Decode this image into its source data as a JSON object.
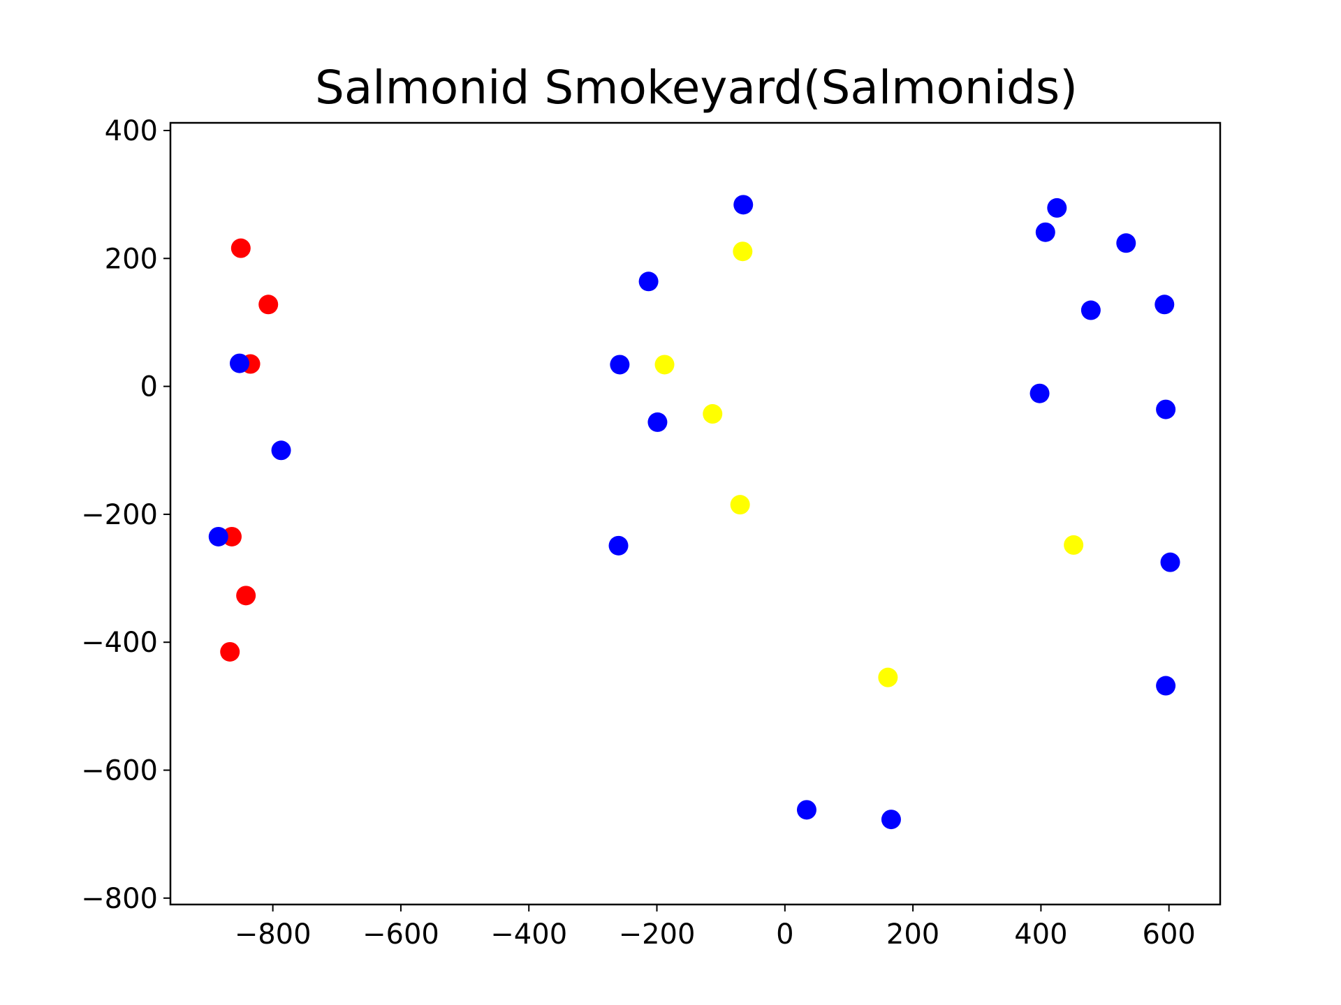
{
  "chart_data": {
    "type": "scatter",
    "title": "Salmonid Smokeyard(Salmonids)",
    "xlabel": "",
    "ylabel": "",
    "xlim": [
      -960,
      680
    ],
    "ylim": [
      -810,
      412
    ],
    "grid": false,
    "x_ticks": [
      {
        "value": -800,
        "label": "−800"
      },
      {
        "value": -600,
        "label": "−600"
      },
      {
        "value": -400,
        "label": "−400"
      },
      {
        "value": -200,
        "label": "−200"
      },
      {
        "value": 0,
        "label": "0"
      },
      {
        "value": 200,
        "label": "200"
      },
      {
        "value": 400,
        "label": "400"
      },
      {
        "value": 600,
        "label": "600"
      }
    ],
    "y_ticks": [
      {
        "value": 400,
        "label": "400"
      },
      {
        "value": 200,
        "label": "200"
      },
      {
        "value": 0,
        "label": "0"
      },
      {
        "value": -200,
        "label": "−200"
      },
      {
        "value": -400,
        "label": "−400"
      },
      {
        "value": -600,
        "label": "−600"
      },
      {
        "value": -800,
        "label": "−800"
      }
    ],
    "series": [
      {
        "color": "#ff0000",
        "points": [
          [
            -850,
            216
          ],
          [
            -807,
            128
          ],
          [
            -835,
            35
          ],
          [
            -864,
            -235
          ],
          [
            -842,
            -327
          ],
          [
            -867,
            -415
          ]
        ]
      },
      {
        "color": "#ffff00",
        "points": [
          [
            -66,
            211
          ],
          [
            -188,
            34
          ],
          [
            -113,
            -43
          ],
          [
            -70,
            -185
          ],
          [
            451,
            -248
          ],
          [
            161,
            -455
          ]
        ]
      },
      {
        "color": "#0000ff",
        "points": [
          [
            -65,
            284
          ],
          [
            -213,
            164
          ],
          [
            -258,
            34
          ],
          [
            -199,
            -56
          ],
          [
            -260,
            -249
          ],
          [
            -852,
            36
          ],
          [
            -787,
            -100
          ],
          [
            -885,
            -235
          ],
          [
            34,
            -662
          ],
          [
            166,
            -677
          ],
          [
            425,
            279
          ],
          [
            407,
            241
          ],
          [
            533,
            224
          ],
          [
            478,
            119
          ],
          [
            593,
            128
          ],
          [
            398,
            -11
          ],
          [
            595,
            -36
          ],
          [
            602,
            -275
          ],
          [
            595,
            -468
          ]
        ]
      }
    ]
  }
}
